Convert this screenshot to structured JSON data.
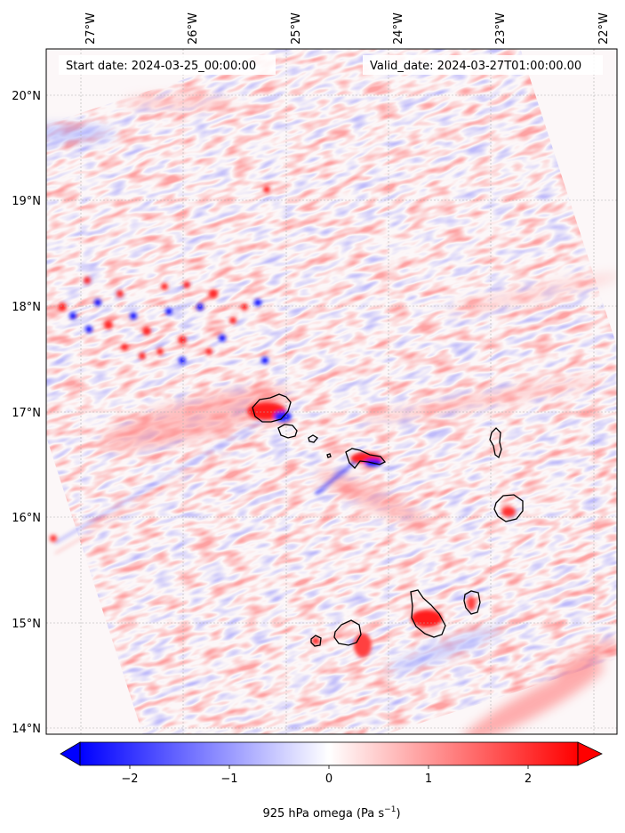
{
  "header": {
    "start_date": "Start date: 2024-03-25_00:00:00",
    "valid_date": "Valid_date: 2024-03-27T01:00:00.00"
  },
  "map": {
    "lon_range": [
      -27.35,
      -21.85
    ],
    "lat_range": [
      13.95,
      20.45
    ],
    "lon_ticks": [
      "27°W",
      "26°W",
      "25°W",
      "24°W",
      "23°W",
      "22°W"
    ],
    "lat_ticks": [
      "20°N",
      "19°N",
      "18°N",
      "17°N",
      "16°N",
      "15°N",
      "14°N"
    ],
    "gridlines": true,
    "islands": [
      {
        "name": "Santo Antão",
        "center": [
          -25.17,
          16.98
        ]
      },
      {
        "name": "São Vicente",
        "center": [
          -24.97,
          16.83
        ]
      },
      {
        "name": "Santa Luzia",
        "center": [
          -24.75,
          16.76
        ]
      },
      {
        "name": "São Nicolau",
        "center": [
          -24.27,
          16.59
        ]
      },
      {
        "name": "Sal",
        "center": [
          -22.93,
          16.73
        ]
      },
      {
        "name": "Boa Vista",
        "center": [
          -22.82,
          16.09
        ]
      },
      {
        "name": "Maio",
        "center": [
          -23.17,
          15.21
        ]
      },
      {
        "name": "Santiago",
        "center": [
          -23.61,
          15.1
        ]
      },
      {
        "name": "Fogo",
        "center": [
          -24.38,
          14.92
        ]
      },
      {
        "name": "Brava",
        "center": [
          -24.71,
          14.84
        ]
      }
    ]
  },
  "colorbar": {
    "ticks": [
      "−2",
      "−1",
      "0",
      "1",
      "2"
    ],
    "tick_values": [
      -2,
      -1,
      0,
      1,
      2
    ],
    "range": [
      -2.5,
      2.5
    ],
    "label_prefix": "925 hPa omega (Pa s",
    "label_exp": "−1",
    "label_suffix": ")",
    "colors": {
      "low": "#0000ff",
      "mid": "#ffffff",
      "high": "#ff0000"
    }
  }
}
